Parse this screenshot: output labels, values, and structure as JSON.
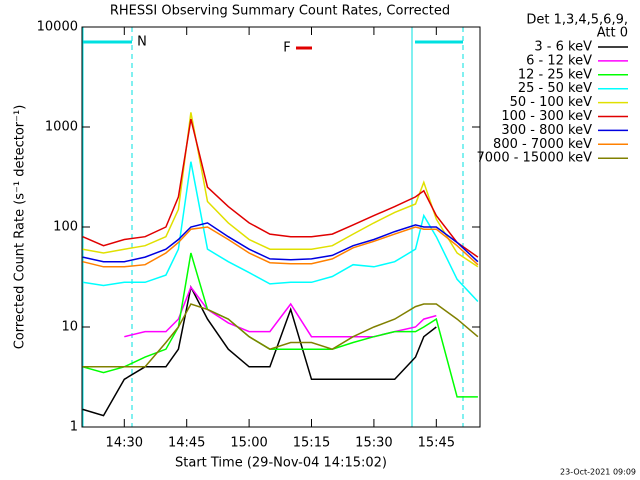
{
  "chart_data": {
    "type": "line",
    "title": "RHESSI Observing Summary Count Rates, Corrected",
    "xlabel": "Start Time (29-Nov-04 14:15:02)",
    "ylabel": "Corrected Count Rate (s⁻¹ detector⁻¹)",
    "legend_header": [
      "Det 1,3,4,5,6,9,",
      "Att 0"
    ],
    "timestamp": "23-Oct-2021 09:09",
    "annotations": [
      {
        "text": "N",
        "color": "#00e0e0"
      },
      {
        "text": "F",
        "color": "#e00000"
      }
    ],
    "log_y": true,
    "xlim": [
      "14:19:50",
      "15:55:30"
    ],
    "xticks": [
      "14:30",
      "14:45",
      "15:00",
      "15:15",
      "15:30",
      "15:45"
    ],
    "ylim": [
      1,
      10000
    ],
    "yticks": [
      1,
      10,
      100,
      1000,
      10000
    ],
    "x": [
      "14:20",
      "14:25",
      "14:30",
      "14:35",
      "14:40",
      "14:43",
      "14:46",
      "14:50",
      "14:55",
      "15:00",
      "15:05",
      "15:10",
      "15:15",
      "15:20",
      "15:25",
      "15:30",
      "15:35",
      "15:40",
      "15:42",
      "15:45",
      "15:50",
      "15:55"
    ],
    "series": [
      {
        "name": "3 - 6 keV",
        "color": "#000000",
        "values": [
          1.5,
          1.3,
          3,
          4,
          4,
          6,
          25,
          12,
          6,
          4,
          4,
          15,
          3,
          3,
          3,
          3,
          3,
          5,
          8,
          10,
          null,
          null
        ]
      },
      {
        "name": "6 - 12 keV",
        "color": "#ff00ff",
        "values": [
          null,
          null,
          8,
          9,
          9,
          12,
          25,
          15,
          11,
          9,
          9,
          17,
          8,
          8,
          8,
          8,
          9,
          10,
          12,
          13,
          null,
          null
        ]
      },
      {
        "name": "12 - 25 keV",
        "color": "#00ff00",
        "values": [
          4,
          3.5,
          4,
          5,
          6,
          10,
          55,
          15,
          12,
          8,
          6,
          6,
          6,
          6,
          7,
          8,
          9,
          9,
          10,
          12,
          2,
          2
        ]
      },
      {
        "name": "25 - 50 keV",
        "color": "#00ffff",
        "values": [
          28,
          26,
          28,
          28,
          33,
          60,
          450,
          60,
          45,
          35,
          27,
          28,
          28,
          32,
          42,
          40,
          45,
          60,
          130,
          80,
          30,
          18
        ]
      },
      {
        "name": "50 - 100 keV",
        "color": "#e0e000",
        "values": [
          60,
          55,
          60,
          65,
          80,
          150,
          1400,
          180,
          110,
          75,
          60,
          60,
          60,
          65,
          85,
          110,
          140,
          170,
          280,
          120,
          55,
          40
        ]
      },
      {
        "name": "100 - 300 keV",
        "color": "#e00000",
        "values": [
          80,
          65,
          75,
          80,
          100,
          200,
          1200,
          250,
          160,
          110,
          85,
          80,
          80,
          85,
          105,
          130,
          160,
          200,
          230,
          130,
          70,
          50
        ]
      },
      {
        "name": "300 - 800 keV",
        "color": "#0000e0",
        "values": [
          50,
          45,
          45,
          50,
          60,
          75,
          100,
          110,
          80,
          60,
          48,
          47,
          48,
          52,
          65,
          75,
          90,
          105,
          100,
          100,
          70,
          45
        ]
      },
      {
        "name": "800 - 7000 keV",
        "color": "#ff8000",
        "values": [
          45,
          40,
          40,
          42,
          55,
          70,
          95,
          100,
          75,
          55,
          44,
          43,
          43,
          48,
          62,
          72,
          85,
          100,
          95,
          95,
          65,
          42
        ]
      },
      {
        "name": "7000 - 15000 keV",
        "color": "#808000",
        "values": [
          4,
          4,
          4,
          4,
          7,
          10,
          17,
          15,
          12,
          8,
          6,
          7,
          7,
          6,
          8,
          10,
          12,
          16,
          17,
          17,
          12,
          8
        ]
      }
    ]
  }
}
